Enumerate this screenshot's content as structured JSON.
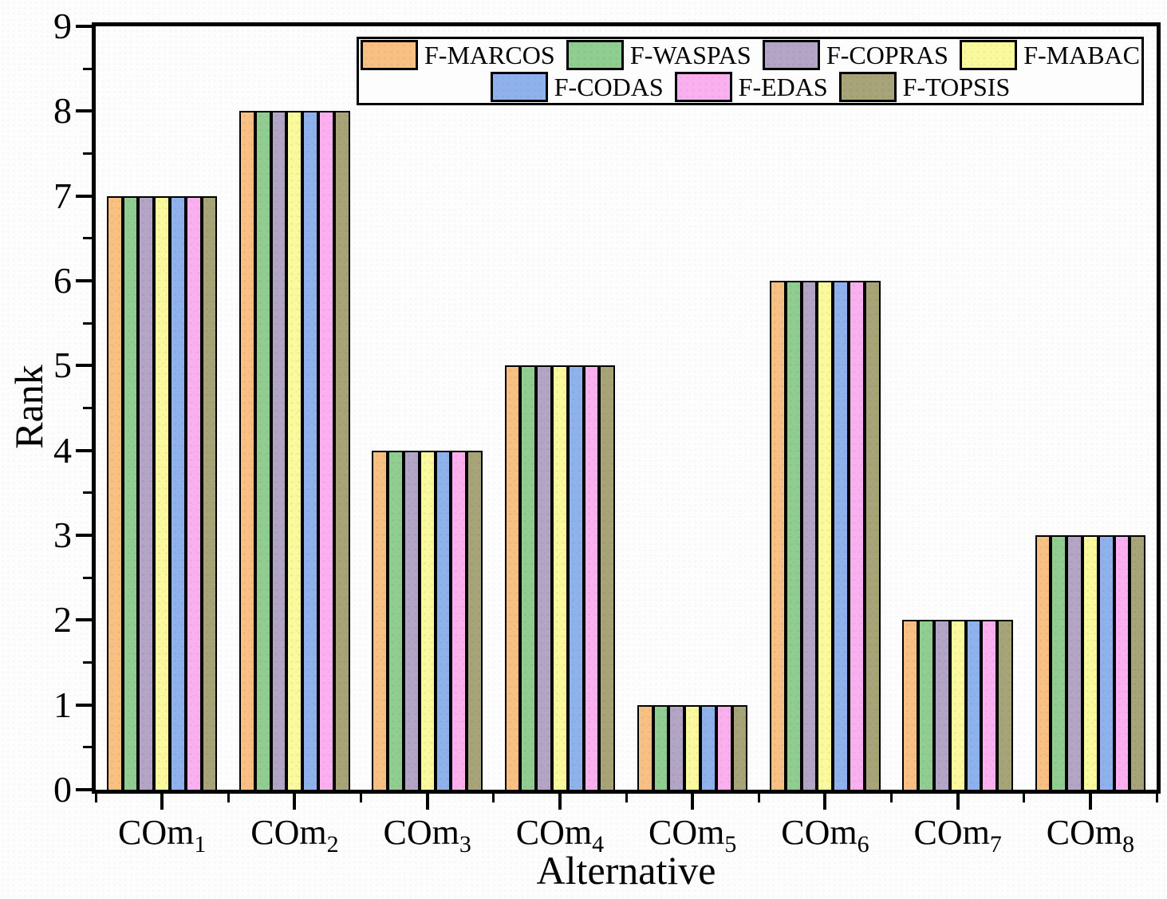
{
  "chart_data": {
    "type": "bar",
    "title": "",
    "xlabel": "Alternative",
    "ylabel": "Rank",
    "ylim": [
      0,
      9
    ],
    "y_major_ticks": [
      0,
      1,
      2,
      3,
      4,
      5,
      6,
      7,
      8,
      9
    ],
    "y_minor_step": 0.5,
    "grid": false,
    "bar_edge_color": "#000000",
    "categories": [
      {
        "base": "COm",
        "sub": "1"
      },
      {
        "base": "COm",
        "sub": "2"
      },
      {
        "base": "COm",
        "sub": "3"
      },
      {
        "base": "COm",
        "sub": "4"
      },
      {
        "base": "COm",
        "sub": "5"
      },
      {
        "base": "COm",
        "sub": "6"
      },
      {
        "base": "COm",
        "sub": "7"
      },
      {
        "base": "COm",
        "sub": "8"
      }
    ],
    "series": [
      {
        "name": "F-MARCOS",
        "color": "#F9C083",
        "values": [
          7,
          8,
          4,
          5,
          1,
          6,
          2,
          3
        ]
      },
      {
        "name": "F-WASPAS",
        "color": "#8FCE90",
        "values": [
          7,
          8,
          4,
          5,
          1,
          6,
          2,
          3
        ]
      },
      {
        "name": "F-COPRAS",
        "color": "#B3A5C6",
        "values": [
          7,
          8,
          4,
          5,
          1,
          6,
          2,
          3
        ]
      },
      {
        "name": "F-MABAC",
        "color": "#FAF99E",
        "values": [
          7,
          8,
          4,
          5,
          1,
          6,
          2,
          3
        ]
      },
      {
        "name": "F-CODAS",
        "color": "#8FB2EC",
        "values": [
          7,
          8,
          4,
          5,
          1,
          6,
          2,
          3
        ]
      },
      {
        "name": "F-EDAS",
        "color": "#FAB0EF",
        "values": [
          7,
          8,
          4,
          5,
          1,
          6,
          2,
          3
        ]
      },
      {
        "name": "F-TOPSIS",
        "color": "#A7A478",
        "values": [
          7,
          8,
          4,
          5,
          1,
          6,
          2,
          3
        ]
      }
    ],
    "legend": {
      "position": "top-inside",
      "rows": [
        [
          "F-MARCOS",
          "F-WASPAS",
          "F-COPRAS",
          "F-MABAC"
        ],
        [
          "F-CODAS",
          "F-EDAS",
          "F-TOPSIS"
        ]
      ]
    }
  }
}
